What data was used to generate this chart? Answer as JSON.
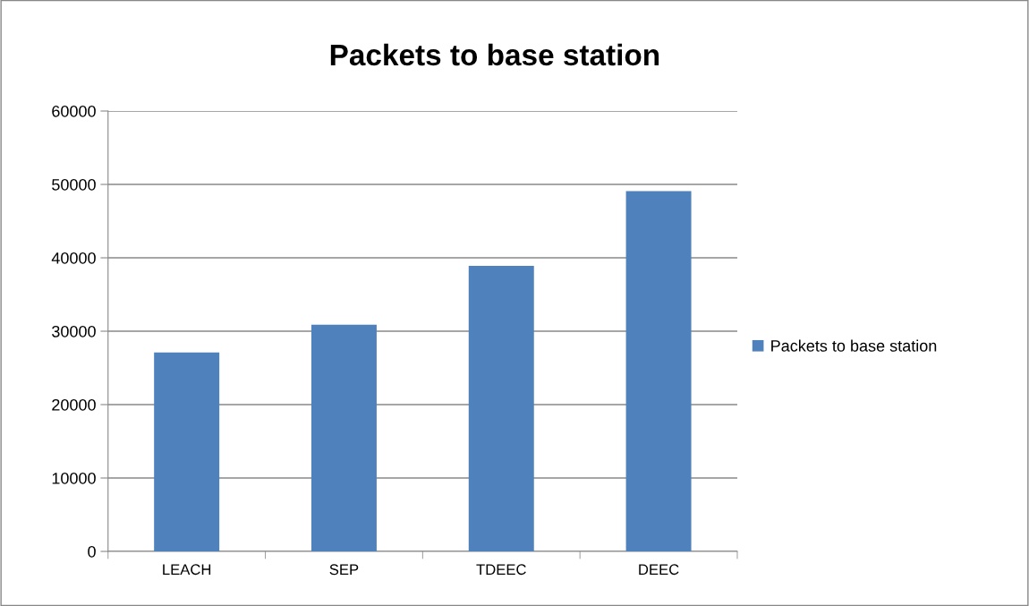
{
  "chart_data": {
    "type": "bar",
    "title": "Packets to base station",
    "categories": [
      "LEACH",
      "SEP",
      "TDEEC",
      "DEEC"
    ],
    "series": [
      {
        "name": "Packets to base station",
        "color": "#4f81bd",
        "values": [
          27100,
          30900,
          38900,
          49100
        ]
      }
    ],
    "ylim": [
      0,
      60000
    ],
    "yticks": [
      0,
      10000,
      20000,
      30000,
      40000,
      50000,
      60000
    ],
    "grid": "y",
    "legend": "right"
  }
}
